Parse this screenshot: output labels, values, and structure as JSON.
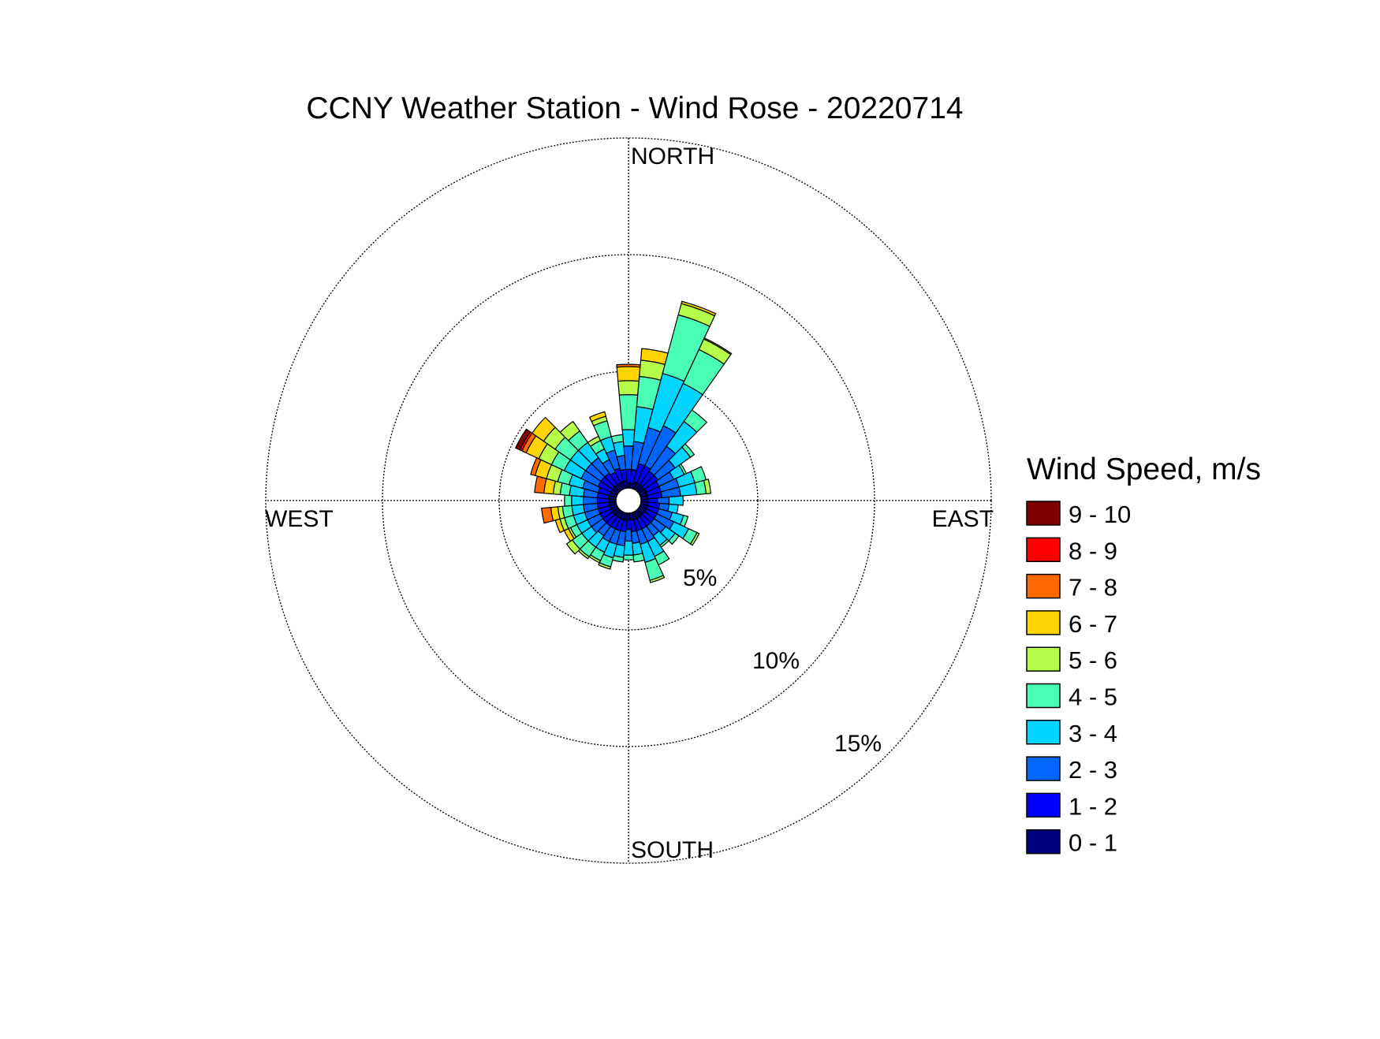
{
  "chart_data": {
    "type": "windrose",
    "title": "CCNY Weather Station - Wind Rose - 20220714",
    "direction_labels": {
      "north": "NORTH",
      "east": "EAST",
      "south": "SOUTH",
      "west": "WEST"
    },
    "radial_ticks": [
      {
        "value": 5,
        "label": "5%"
      },
      {
        "value": 10,
        "label": "10%"
      },
      {
        "value": 15,
        "label": "15%"
      }
    ],
    "rmax": 15,
    "grid": true,
    "legend": {
      "title": "Wind Speed, m/s",
      "placement": "right",
      "bins": [
        {
          "label": "9 - 10",
          "color": "#800000"
        },
        {
          "label": "8 - 9",
          "color": "#ff0000"
        },
        {
          "label": "7 - 8",
          "color": "#ff6a00"
        },
        {
          "label": "6 - 7",
          "color": "#ffd400"
        },
        {
          "label": "5 - 6",
          "color": "#b5ff4a"
        },
        {
          "label": "4 - 5",
          "color": "#4affb5"
        },
        {
          "label": "3 - 4",
          "color": "#00d5ff"
        },
        {
          "label": "2 - 3",
          "color": "#0066ff"
        },
        {
          "label": "1 - 2",
          "color": "#0000ff"
        },
        {
          "label": "0 - 1",
          "color": "#00007f"
        }
      ]
    },
    "bin_order_inner_to_outer": [
      "0 - 1",
      "1 - 2",
      "2 - 3",
      "3 - 4",
      "4 - 5",
      "5 - 6",
      "6 - 7",
      "7 - 8",
      "8 - 9",
      "9 - 10"
    ],
    "sectors": [
      {
        "dir": 0,
        "values": [
          0.2,
          0.6,
          1.0,
          0.7,
          1.5,
          0.6,
          0.6,
          0.1,
          0,
          0
        ]
      },
      {
        "dir": 10,
        "values": [
          0.2,
          0.6,
          1.2,
          1.5,
          1.3,
          0.7,
          0.5,
          0,
          0,
          0
        ]
      },
      {
        "dir": 20,
        "values": [
          0.3,
          0.8,
          1.6,
          2.4,
          2.6,
          0.5,
          0.1,
          0,
          0,
          0
        ]
      },
      {
        "dir": 30,
        "values": [
          0.3,
          0.8,
          1.9,
          2.0,
          1.6,
          0.5,
          0.05,
          0,
          0,
          0
        ]
      },
      {
        "dir": 40,
        "values": [
          0.3,
          0.7,
          1.3,
          1.3,
          0.6,
          0,
          0,
          0,
          0,
          0
        ]
      },
      {
        "dir": 50,
        "values": [
          0.3,
          0.7,
          0.9,
          0.8,
          0.2,
          0,
          0,
          0,
          0,
          0
        ]
      },
      {
        "dir": 60,
        "values": [
          0.3,
          0.6,
          0.7,
          0.5,
          0.1,
          0,
          0,
          0,
          0,
          0
        ]
      },
      {
        "dir": 70,
        "values": [
          0.3,
          0.6,
          0.8,
          0.7,
          0.5,
          0,
          0,
          0,
          0,
          0
        ]
      },
      {
        "dir": 80,
        "values": [
          0.3,
          0.6,
          0.8,
          0.7,
          0.4,
          0.2,
          0,
          0,
          0,
          0
        ]
      },
      {
        "dir": 90,
        "values": [
          0.3,
          0.4,
          0.5,
          0.6,
          0,
          0,
          0,
          0,
          0,
          0
        ]
      },
      {
        "dir": 100,
        "values": [
          0.3,
          0.5,
          0.4,
          0.4,
          0,
          0,
          0,
          0,
          0,
          0
        ]
      },
      {
        "dir": 110,
        "values": [
          0.3,
          0.5,
          0.6,
          0.5,
          0.2,
          0,
          0,
          0,
          0,
          0
        ]
      },
      {
        "dir": 120,
        "values": [
          0.3,
          0.5,
          0.8,
          0.7,
          0.4,
          0.1,
          0,
          0,
          0,
          0
        ]
      },
      {
        "dir": 130,
        "values": [
          0.3,
          0.5,
          0.6,
          0.5,
          0.2,
          0,
          0,
          0,
          0,
          0
        ]
      },
      {
        "dir": 140,
        "values": [
          0.3,
          0.5,
          0.5,
          0.5,
          0.1,
          0,
          0,
          0,
          0,
          0
        ]
      },
      {
        "dir": 150,
        "values": [
          0.3,
          0.5,
          0.6,
          0.7,
          0.4,
          0,
          0,
          0,
          0,
          0
        ]
      },
      {
        "dir": 160,
        "values": [
          0.3,
          0.5,
          0.6,
          0.8,
          0.8,
          0.1,
          0,
          0,
          0,
          0
        ]
      },
      {
        "dir": 170,
        "values": [
          0.3,
          0.5,
          0.5,
          0.5,
          0.3,
          0,
          0,
          0,
          0,
          0
        ]
      },
      {
        "dir": 180,
        "values": [
          0.3,
          0.4,
          0.5,
          0.6,
          0.2,
          0,
          0,
          0,
          0,
          0
        ]
      },
      {
        "dir": 190,
        "values": [
          0.3,
          0.5,
          0.6,
          0.5,
          0.2,
          0,
          0,
          0,
          0,
          0
        ]
      },
      {
        "dir": 200,
        "values": [
          0.3,
          0.5,
          0.6,
          0.6,
          0.4,
          0.1,
          0,
          0,
          0,
          0
        ]
      },
      {
        "dir": 210,
        "values": [
          0.3,
          0.5,
          0.6,
          0.5,
          0.4,
          0.1,
          0,
          0,
          0,
          0
        ]
      },
      {
        "dir": 220,
        "values": [
          0.3,
          0.5,
          0.5,
          0.6,
          0.5,
          0.1,
          0,
          0,
          0,
          0
        ]
      },
      {
        "dir": 230,
        "values": [
          0.3,
          0.5,
          0.6,
          0.5,
          0.5,
          0.3,
          0,
          0,
          0,
          0
        ]
      },
      {
        "dir": 240,
        "values": [
          0.3,
          0.5,
          0.6,
          0.5,
          0.3,
          0.1,
          0.2,
          0,
          0,
          0
        ]
      },
      {
        "dir": 250,
        "values": [
          0.3,
          0.5,
          0.6,
          0.5,
          0.4,
          0.2,
          0.2,
          0,
          0,
          0
        ]
      },
      {
        "dir": 260,
        "values": [
          0.3,
          0.5,
          0.6,
          0.5,
          0.4,
          0.2,
          0.3,
          0.4,
          0,
          0
        ]
      },
      {
        "dir": 270,
        "values": [
          0.3,
          0.5,
          0.6,
          0.5,
          0.3,
          0,
          0,
          0,
          0,
          0
        ]
      },
      {
        "dir": 280,
        "values": [
          0.3,
          0.5,
          0.6,
          0.6,
          0.4,
          0.3,
          0.4,
          0.4,
          0,
          0
        ]
      },
      {
        "dir": 290,
        "values": [
          0.3,
          0.5,
          0.7,
          0.6,
          0.5,
          0.5,
          0.5,
          0.2,
          0,
          0
        ]
      },
      {
        "dir": 300,
        "values": [
          0.3,
          0.6,
          0.8,
          0.8,
          0.6,
          0.6,
          0.6,
          0.2,
          0.1,
          0.2
        ]
      },
      {
        "dir": 310,
        "values": [
          0.3,
          0.6,
          0.8,
          0.8,
          0.8,
          0.6,
          0.6,
          0,
          0,
          0
        ]
      },
      {
        "dir": 320,
        "values": [
          0.3,
          0.6,
          0.8,
          0.8,
          0.6,
          0.5,
          0,
          0,
          0,
          0
        ]
      },
      {
        "dir": 330,
        "values": [
          0.3,
          0.5,
          0.6,
          0.5,
          0.4,
          0.2,
          0,
          0,
          0,
          0
        ]
      },
      {
        "dir": 340,
        "values": [
          0.3,
          0.6,
          0.8,
          0.6,
          0.7,
          0.2,
          0.2,
          0,
          0,
          0
        ]
      },
      {
        "dir": 350,
        "values": [
          0.3,
          0.5,
          0.6,
          0.6,
          0.3,
          0,
          0,
          0,
          0,
          0
        ]
      }
    ]
  }
}
